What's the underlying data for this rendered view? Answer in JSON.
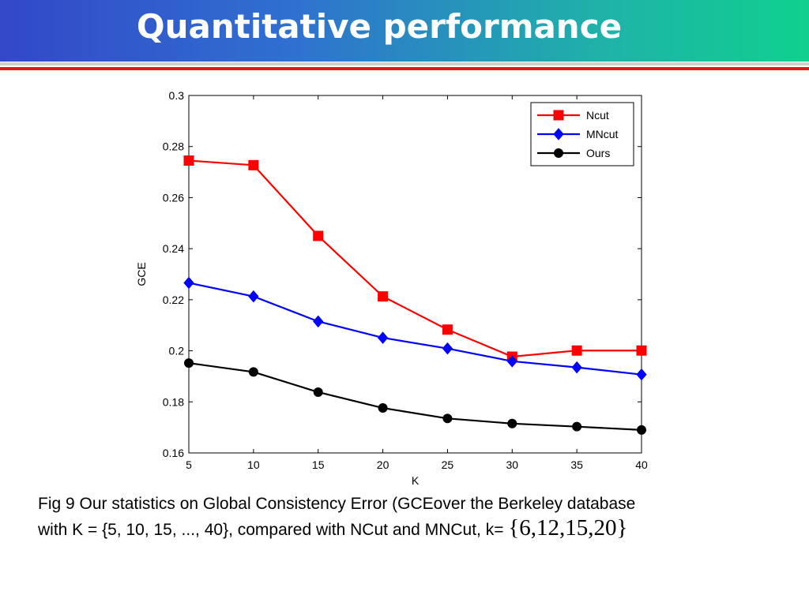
{
  "slide": {
    "title": "Quantitative performance"
  },
  "caption": {
    "line1": "Fig 9 Our statistics on Global Consistency Error (GCEover the Berkeley database",
    "line2": "with K = {5, 10, 15, ..., 40}, compared with NCut and MNCut, k= ",
    "kset": "{6,12,15,20}"
  },
  "colors": {
    "header_gradient_start": "#3348c8",
    "header_gradient_end": "#0fd08e",
    "rule_red": "#e01818",
    "ncut": "#ff0000",
    "mncut": "#0000ff",
    "ours": "#000000"
  },
  "chart_data": {
    "type": "line",
    "xlabel": "K",
    "ylabel": "GCE",
    "x": [
      5,
      10,
      15,
      20,
      25,
      30,
      35,
      40
    ],
    "xlim": [
      5,
      40
    ],
    "ylim": [
      0.16,
      0.3
    ],
    "xticks": [
      "5",
      "10",
      "15",
      "20",
      "25",
      "30",
      "35",
      "40"
    ],
    "yticks": [
      "0.16",
      "0.18",
      "0.2",
      "0.22",
      "0.24",
      "0.26",
      "0.28",
      "0.3"
    ],
    "ytick_values": [
      0.16,
      0.18,
      0.2,
      0.22,
      0.24,
      0.26,
      0.28,
      0.3
    ],
    "grid": false,
    "legend_position": "top-right",
    "series": [
      {
        "name": "Ncut",
        "color": "#ff0000",
        "marker": "square",
        "values": [
          0.2745,
          0.2727,
          0.245,
          0.2213,
          0.2083,
          0.1977,
          0.2001,
          0.2001
        ]
      },
      {
        "name": "MNcut",
        "color": "#0000ff",
        "marker": "diamond",
        "values": [
          0.2266,
          0.2213,
          0.2115,
          0.2051,
          0.2009,
          0.1959,
          0.1935,
          0.1907
        ]
      },
      {
        "name": "Ours",
        "color": "#000000",
        "marker": "circle",
        "values": [
          0.1952,
          0.1917,
          0.1838,
          0.1776,
          0.1735,
          0.1715,
          0.1703,
          0.169
        ]
      }
    ]
  }
}
